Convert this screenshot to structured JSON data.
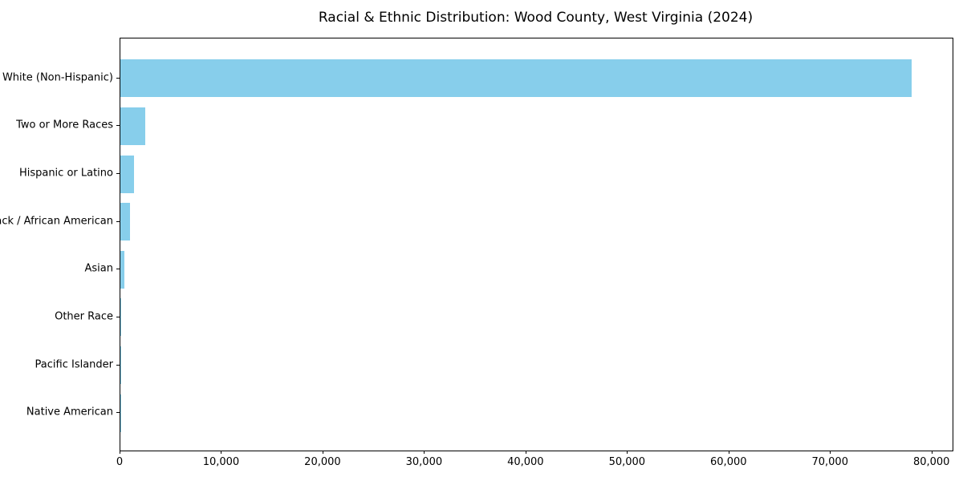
{
  "chart_data": {
    "type": "bar",
    "orientation": "horizontal",
    "title": "Racial & Ethnic Distribution: Wood County, West Virginia (2024)",
    "categories": [
      "White (Non-Hispanic)",
      "Two or More Races",
      "Hispanic or Latino",
      "Black / African American",
      "Asian",
      "Other Race",
      "Pacific Islander",
      "Native American"
    ],
    "values": [
      78000,
      2450,
      1350,
      950,
      420,
      100,
      50,
      25
    ],
    "xlabel": "",
    "ylabel": "",
    "xlim": [
      0,
      82000
    ],
    "x_ticks": [
      {
        "value": 0,
        "label": "0"
      },
      {
        "value": 10000,
        "label": "10,000"
      },
      {
        "value": 20000,
        "label": "20,000"
      },
      {
        "value": 30000,
        "label": "30,000"
      },
      {
        "value": 40000,
        "label": "40,000"
      },
      {
        "value": 50000,
        "label": "50,000"
      },
      {
        "value": 60000,
        "label": "60,000"
      },
      {
        "value": 70000,
        "label": "70,000"
      },
      {
        "value": 80000,
        "label": "80,000"
      }
    ],
    "grid": false,
    "legend_position": "none",
    "bar_color": "#87CEEB",
    "axis_color": "#000000",
    "text_color": "#000000"
  }
}
